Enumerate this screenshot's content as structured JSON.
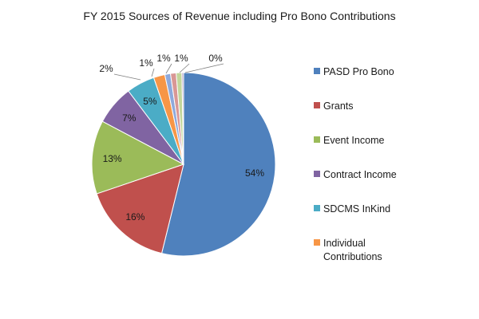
{
  "chart_data": {
    "type": "pie",
    "title": "FY 2015 Sources of Revenue including Pro Bono Contributions",
    "slices": [
      {
        "label": "PASD Pro Bono",
        "legend_lines": [
          "PASD Pro Bono"
        ],
        "value": 54,
        "display": "54%",
        "color": "#4F81BD",
        "in_legend": true
      },
      {
        "label": "Grants",
        "legend_lines": [
          "Grants"
        ],
        "value": 16,
        "display": "16%",
        "color": "#C0504D",
        "in_legend": true
      },
      {
        "label": "Event Income",
        "legend_lines": [
          "Event Income"
        ],
        "value": 13,
        "display": "13%",
        "color": "#9BBB59",
        "in_legend": true
      },
      {
        "label": "Contract Income",
        "legend_lines": [
          "Contract Income"
        ],
        "value": 7,
        "display": "7%",
        "color": "#8064A2",
        "in_legend": true
      },
      {
        "label": "SDCMS InKind",
        "legend_lines": [
          "SDCMS InKind"
        ],
        "value": 5,
        "display": "5%",
        "color": "#4BACC6",
        "in_legend": true
      },
      {
        "label": "Individual Contributions",
        "legend_lines": [
          "Individual",
          "Contributions"
        ],
        "value": 2,
        "display": "2%",
        "color": "#F79646",
        "in_legend": true
      },
      {
        "label": "",
        "value": 1,
        "display": "1%",
        "color": "#8EA9DB",
        "in_legend": false
      },
      {
        "label": "",
        "value": 1,
        "display": "1%",
        "color": "#D99795",
        "in_legend": false
      },
      {
        "label": "",
        "value": 1,
        "display": "1%",
        "color": "#C3D69B",
        "in_legend": false
      },
      {
        "label": "",
        "value": 0.3,
        "display": "0%",
        "color": "#B3A2C7",
        "in_legend": false
      }
    ],
    "legend_position": "right"
  }
}
